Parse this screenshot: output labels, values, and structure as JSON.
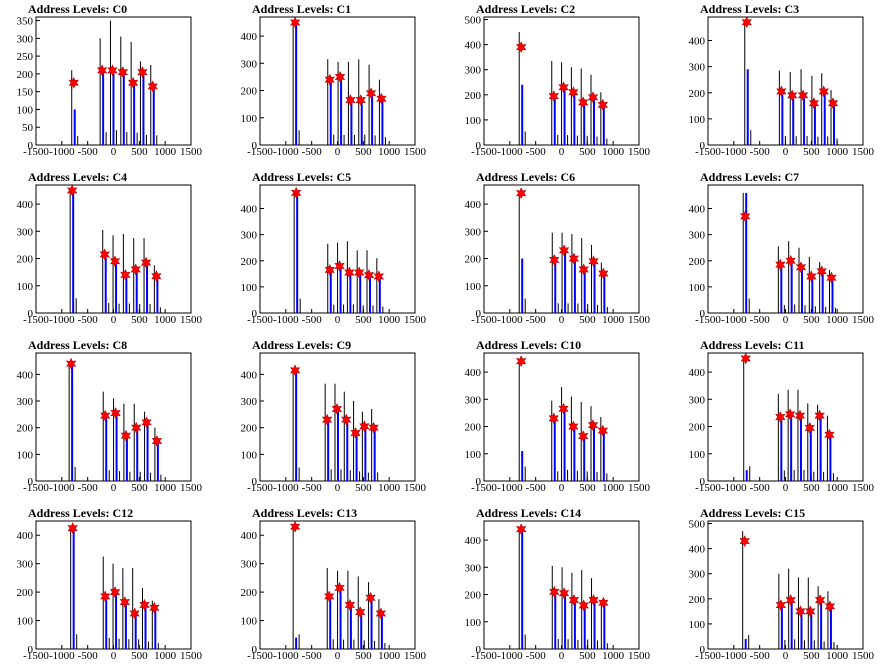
{
  "colors": {
    "frame": "#000000",
    "blue": "#0000ff",
    "black": "#000000",
    "marker": "#ff0000"
  },
  "chart_data": [
    {
      "title": "Address Levels: C0",
      "type": "bar",
      "xlim": [
        -1500,
        1500
      ],
      "ylim": [
        0,
        360
      ],
      "xticks": [
        "-1500",
        "-1000",
        "-500",
        "0",
        "500",
        "1000",
        "1500"
      ],
      "yticks": [
        "0",
        "50",
        "100",
        "150",
        "200",
        "250",
        "300",
        "350"
      ],
      "peaks": [
        {
          "x": -770,
          "black": 210,
          "blue": 100,
          "marker": 175
        },
        {
          "x": -220,
          "black": 300,
          "blue": 205,
          "marker": 210
        },
        {
          "x": -20,
          "black": 350,
          "blue": 205,
          "marker": 210
        },
        {
          "x": 180,
          "black": 305,
          "blue": 200,
          "marker": 205
        },
        {
          "x": 380,
          "black": 290,
          "blue": 170,
          "marker": 175
        },
        {
          "x": 560,
          "black": 235,
          "blue": 200,
          "marker": 205
        },
        {
          "x": 760,
          "black": 225,
          "blue": 160,
          "marker": 165
        }
      ]
    },
    {
      "title": "Address Levels: C1",
      "type": "bar",
      "xlim": [
        -1500,
        1500
      ],
      "ylim": [
        0,
        470
      ],
      "xticks": [
        "-1500",
        "-1000",
        "-500",
        "0",
        "500",
        "1000",
        "1500"
      ],
      "yticks": [
        "0",
        "100",
        "200",
        "300",
        "400"
      ],
      "peaks": [
        {
          "x": -820,
          "black": 450,
          "blue": 450,
          "marker": 450
        },
        {
          "x": -150,
          "black": 315,
          "blue": 235,
          "marker": 240
        },
        {
          "x": 50,
          "black": 305,
          "blue": 245,
          "marker": 250
        },
        {
          "x": 250,
          "black": 305,
          "blue": 160,
          "marker": 165
        },
        {
          "x": 450,
          "black": 315,
          "blue": 160,
          "marker": 165
        },
        {
          "x": 650,
          "black": 295,
          "blue": 185,
          "marker": 190
        },
        {
          "x": 850,
          "black": 240,
          "blue": 165,
          "marker": 170
        }
      ]
    },
    {
      "title": "Address Levels: C2",
      "type": "bar",
      "xlim": [
        -1500,
        1500
      ],
      "ylim": [
        0,
        510
      ],
      "xticks": [
        "-1500",
        "-1000",
        "-500",
        "0",
        "500",
        "1000",
        "1500"
      ],
      "yticks": [
        "0",
        "100",
        "200",
        "300",
        "400",
        "500"
      ],
      "peaks": [
        {
          "x": -780,
          "black": 450,
          "blue": 240,
          "marker": 390
        },
        {
          "x": -150,
          "black": 335,
          "blue": 195,
          "marker": 195
        },
        {
          "x": 40,
          "black": 330,
          "blue": 225,
          "marker": 230
        },
        {
          "x": 230,
          "black": 310,
          "blue": 205,
          "marker": 210
        },
        {
          "x": 420,
          "black": 305,
          "blue": 170,
          "marker": 170
        },
        {
          "x": 610,
          "black": 280,
          "blue": 190,
          "marker": 190
        },
        {
          "x": 800,
          "black": 210,
          "blue": 155,
          "marker": 160
        }
      ]
    },
    {
      "title": "Address Levels: C3",
      "type": "bar",
      "xlim": [
        -1500,
        1500
      ],
      "ylim": [
        0,
        490
      ],
      "xticks": [
        "-1500",
        "-1000",
        "-500",
        "0",
        "500",
        "1000",
        "1500"
      ],
      "yticks": [
        "0",
        "100",
        "200",
        "300",
        "400"
      ],
      "peaks": [
        {
          "x": -750,
          "black": 470,
          "blue": 290,
          "marker": 470
        },
        {
          "x": -80,
          "black": 285,
          "blue": 200,
          "marker": 205
        },
        {
          "x": 130,
          "black": 280,
          "blue": 185,
          "marker": 190
        },
        {
          "x": 340,
          "black": 290,
          "blue": 190,
          "marker": 190
        },
        {
          "x": 550,
          "black": 265,
          "blue": 155,
          "marker": 160
        },
        {
          "x": 740,
          "black": 275,
          "blue": 200,
          "marker": 205
        },
        {
          "x": 920,
          "black": 210,
          "blue": 155,
          "marker": 160
        }
      ]
    },
    {
      "title": "Address Levels: C4",
      "type": "bar",
      "xlim": [
        -1500,
        1500
      ],
      "ylim": [
        0,
        470
      ],
      "xticks": [
        "-1500",
        "-1000",
        "-500",
        "0",
        "500",
        "1000",
        "1500"
      ],
      "yticks": [
        "0",
        "100",
        "200",
        "300",
        "400"
      ],
      "peaks": [
        {
          "x": -800,
          "black": 450,
          "blue": 450,
          "marker": 450
        },
        {
          "x": -170,
          "black": 305,
          "blue": 205,
          "marker": 215
        },
        {
          "x": 30,
          "black": 285,
          "blue": 185,
          "marker": 190
        },
        {
          "x": 230,
          "black": 290,
          "blue": 135,
          "marker": 140
        },
        {
          "x": 430,
          "black": 275,
          "blue": 155,
          "marker": 160
        },
        {
          "x": 630,
          "black": 275,
          "blue": 180,
          "marker": 185
        },
        {
          "x": 830,
          "black": 175,
          "blue": 130,
          "marker": 135
        }
      ]
    },
    {
      "title": "Address Levels: C5",
      "type": "bar",
      "xlim": [
        -1500,
        1500
      ],
      "ylim": [
        0,
        490
      ],
      "xticks": [
        "-1500",
        "-1000",
        "-500",
        "0",
        "500",
        "1000",
        "1500"
      ],
      "yticks": [
        "0",
        "100",
        "200",
        "300",
        "400"
      ],
      "peaks": [
        {
          "x": -800,
          "black": 460,
          "blue": 460,
          "marker": 460
        },
        {
          "x": -150,
          "black": 265,
          "blue": 165,
          "marker": 165
        },
        {
          "x": 40,
          "black": 270,
          "blue": 175,
          "marker": 180
        },
        {
          "x": 230,
          "black": 275,
          "blue": 150,
          "marker": 155
        },
        {
          "x": 420,
          "black": 240,
          "blue": 150,
          "marker": 155
        },
        {
          "x": 610,
          "black": 240,
          "blue": 145,
          "marker": 145
        },
        {
          "x": 800,
          "black": 210,
          "blue": 140,
          "marker": 140
        }
      ]
    },
    {
      "title": "Address Levels: C6",
      "type": "bar",
      "xlim": [
        -1500,
        1500
      ],
      "ylim": [
        0,
        470
      ],
      "xticks": [
        "-1500",
        "-1000",
        "-500",
        "0",
        "500",
        "1000",
        "1500"
      ],
      "yticks": [
        "0",
        "100",
        "200",
        "300",
        "400"
      ],
      "peaks": [
        {
          "x": -780,
          "black": 440,
          "blue": 200,
          "marker": 440
        },
        {
          "x": -140,
          "black": 295,
          "blue": 195,
          "marker": 195
        },
        {
          "x": 50,
          "black": 295,
          "blue": 225,
          "marker": 230
        },
        {
          "x": 240,
          "black": 290,
          "blue": 195,
          "marker": 200
        },
        {
          "x": 430,
          "black": 275,
          "blue": 160,
          "marker": 160
        },
        {
          "x": 620,
          "black": 250,
          "blue": 185,
          "marker": 190
        },
        {
          "x": 810,
          "black": 185,
          "blue": 140,
          "marker": 145
        }
      ]
    },
    {
      "title": "Address Levels: C7",
      "type": "bar",
      "xlim": [
        -1500,
        1500
      ],
      "ylim": [
        0,
        490
      ],
      "xticks": [
        "-1500",
        "-1000",
        "-500",
        "0",
        "500",
        "1000",
        "1500"
      ],
      "yticks": [
        "0",
        "100",
        "200",
        "300",
        "400"
      ],
      "peaks": [
        {
          "x": -780,
          "black": 460,
          "blue": 460,
          "marker": 370
        },
        {
          "x": -100,
          "black": 255,
          "blue": 180,
          "marker": 185
        },
        {
          "x": 100,
          "black": 275,
          "blue": 195,
          "marker": 200
        },
        {
          "x": 300,
          "black": 250,
          "blue": 170,
          "marker": 175
        },
        {
          "x": 500,
          "black": 215,
          "blue": 135,
          "marker": 140
        },
        {
          "x": 700,
          "black": 195,
          "blue": 155,
          "marker": 160
        },
        {
          "x": 890,
          "black": 165,
          "blue": 130,
          "marker": 135
        }
      ]
    },
    {
      "title": "Address Levels: C8",
      "type": "bar",
      "xlim": [
        -1500,
        1500
      ],
      "ylim": [
        0,
        480
      ],
      "xticks": [
        "-1500",
        "-1000",
        "-500",
        "0",
        "500",
        "1000",
        "1500"
      ],
      "yticks": [
        "0",
        "100",
        "200",
        "300",
        "400"
      ],
      "peaks": [
        {
          "x": -820,
          "black": 440,
          "blue": 440,
          "marker": 440
        },
        {
          "x": -160,
          "black": 335,
          "blue": 245,
          "marker": 245
        },
        {
          "x": 40,
          "black": 310,
          "blue": 250,
          "marker": 255
        },
        {
          "x": 240,
          "black": 290,
          "blue": 170,
          "marker": 170
        },
        {
          "x": 440,
          "black": 290,
          "blue": 195,
          "marker": 200
        },
        {
          "x": 640,
          "black": 260,
          "blue": 215,
          "marker": 220
        },
        {
          "x": 840,
          "black": 200,
          "blue": 150,
          "marker": 150
        }
      ]
    },
    {
      "title": "Address Levels: C9",
      "type": "bar",
      "xlim": [
        -1500,
        1500
      ],
      "ylim": [
        0,
        480
      ],
      "xticks": [
        "-1500",
        "-1000",
        "-500",
        "0",
        "500",
        "1000",
        "1500"
      ],
      "yticks": [
        "0",
        "100",
        "200",
        "300",
        "400"
      ],
      "peaks": [
        {
          "x": -820,
          "black": 420,
          "blue": 420,
          "marker": 415
        },
        {
          "x": -200,
          "black": 365,
          "blue": 225,
          "marker": 230
        },
        {
          "x": -10,
          "black": 365,
          "blue": 270,
          "marker": 270
        },
        {
          "x": 170,
          "black": 335,
          "blue": 230,
          "marker": 230
        },
        {
          "x": 350,
          "black": 300,
          "blue": 180,
          "marker": 180
        },
        {
          "x": 520,
          "black": 260,
          "blue": 205,
          "marker": 205
        },
        {
          "x": 700,
          "black": 270,
          "blue": 200,
          "marker": 200
        }
      ]
    },
    {
      "title": "Address Levels: C10",
      "type": "bar",
      "xlim": [
        -1500,
        1500
      ],
      "ylim": [
        0,
        470
      ],
      "xticks": [
        "-1500",
        "-1000",
        "-500",
        "0",
        "500",
        "1000",
        "1500"
      ],
      "yticks": [
        "0",
        "100",
        "200",
        "300",
        "400"
      ],
      "peaks": [
        {
          "x": -780,
          "black": 440,
          "blue": 110,
          "marker": 440
        },
        {
          "x": -150,
          "black": 295,
          "blue": 225,
          "marker": 230
        },
        {
          "x": 40,
          "black": 345,
          "blue": 260,
          "marker": 265
        },
        {
          "x": 230,
          "black": 310,
          "blue": 200,
          "marker": 200
        },
        {
          "x": 420,
          "black": 290,
          "blue": 165,
          "marker": 165
        },
        {
          "x": 610,
          "black": 275,
          "blue": 200,
          "marker": 205
        },
        {
          "x": 800,
          "black": 235,
          "blue": 180,
          "marker": 185
        }
      ]
    },
    {
      "title": "Address Levels: C11",
      "type": "bar",
      "xlim": [
        -1500,
        1500
      ],
      "ylim": [
        0,
        470
      ],
      "xticks": [
        "-1500",
        "-1000",
        "-500",
        "0",
        "500",
        "1000",
        "1500"
      ],
      "yticks": [
        "0",
        "100",
        "200",
        "300",
        "400"
      ],
      "peaks": [
        {
          "x": -770,
          "black": 450,
          "blue": 40,
          "marker": 450
        },
        {
          "x": -100,
          "black": 320,
          "blue": 230,
          "marker": 235
        },
        {
          "x": 90,
          "black": 335,
          "blue": 240,
          "marker": 245
        },
        {
          "x": 280,
          "black": 335,
          "blue": 240,
          "marker": 240
        },
        {
          "x": 470,
          "black": 285,
          "blue": 195,
          "marker": 195
        },
        {
          "x": 660,
          "black": 280,
          "blue": 235,
          "marker": 240
        },
        {
          "x": 850,
          "black": 240,
          "blue": 165,
          "marker": 170
        }
      ]
    },
    {
      "title": "Address Levels: C12",
      "type": "bar",
      "xlim": [
        -1500,
        1500
      ],
      "ylim": [
        0,
        450
      ],
      "xticks": [
        "-1500",
        "-1000",
        "-500",
        "0",
        "500",
        "1000",
        "1500"
      ],
      "yticks": [
        "0",
        "100",
        "200",
        "300",
        "400"
      ],
      "peaks": [
        {
          "x": -790,
          "black": 430,
          "blue": 430,
          "marker": 425
        },
        {
          "x": -160,
          "black": 325,
          "blue": 185,
          "marker": 185
        },
        {
          "x": 30,
          "black": 300,
          "blue": 200,
          "marker": 200
        },
        {
          "x": 220,
          "black": 285,
          "blue": 160,
          "marker": 165
        },
        {
          "x": 410,
          "black": 285,
          "blue": 125,
          "marker": 125
        },
        {
          "x": 600,
          "black": 215,
          "blue": 155,
          "marker": 155
        },
        {
          "x": 790,
          "black": 170,
          "blue": 140,
          "marker": 145
        }
      ]
    },
    {
      "title": "Address Levels: C13",
      "type": "bar",
      "xlim": [
        -1500,
        1500
      ],
      "ylim": [
        0,
        450
      ],
      "xticks": [
        "-1500",
        "-1000",
        "-500",
        "0",
        "500",
        "1000",
        "1500"
      ],
      "yticks": [
        "0",
        "100",
        "200",
        "300",
        "400"
      ],
      "peaks": [
        {
          "x": -820,
          "black": 430,
          "blue": 40,
          "marker": 430
        },
        {
          "x": -160,
          "black": 285,
          "blue": 180,
          "marker": 185
        },
        {
          "x": 40,
          "black": 275,
          "blue": 215,
          "marker": 215
        },
        {
          "x": 240,
          "black": 275,
          "blue": 150,
          "marker": 155
        },
        {
          "x": 440,
          "black": 255,
          "blue": 130,
          "marker": 130
        },
        {
          "x": 640,
          "black": 235,
          "blue": 175,
          "marker": 180
        },
        {
          "x": 840,
          "black": 175,
          "blue": 120,
          "marker": 125
        }
      ]
    },
    {
      "title": "Address Levels: C14",
      "type": "bar",
      "xlim": [
        -1500,
        1500
      ],
      "ylim": [
        0,
        470
      ],
      "xticks": [
        "-1500",
        "-1000",
        "-500",
        "0",
        "500",
        "1000",
        "1500"
      ],
      "yticks": [
        "0",
        "100",
        "200",
        "300",
        "400"
      ],
      "peaks": [
        {
          "x": -780,
          "black": 440,
          "blue": 440,
          "marker": 440
        },
        {
          "x": -140,
          "black": 305,
          "blue": 210,
          "marker": 210
        },
        {
          "x": 50,
          "black": 300,
          "blue": 205,
          "marker": 205
        },
        {
          "x": 240,
          "black": 280,
          "blue": 180,
          "marker": 180
        },
        {
          "x": 430,
          "black": 290,
          "blue": 160,
          "marker": 160
        },
        {
          "x": 620,
          "black": 260,
          "blue": 180,
          "marker": 180
        },
        {
          "x": 810,
          "black": 175,
          "blue": 170,
          "marker": 170
        }
      ]
    },
    {
      "title": "Address Levels: C15",
      "type": "bar",
      "xlim": [
        -1500,
        1500
      ],
      "ylim": [
        0,
        510
      ],
      "xticks": [
        "-1500",
        "-1000",
        "-500",
        "0",
        "500",
        "1000",
        "1500"
      ],
      "yticks": [
        "0",
        "100",
        "200",
        "300",
        "400",
        "500"
      ],
      "peaks": [
        {
          "x": -790,
          "black": 470,
          "blue": 40,
          "marker": 430
        },
        {
          "x": -90,
          "black": 300,
          "blue": 175,
          "marker": 175
        },
        {
          "x": 100,
          "black": 320,
          "blue": 195,
          "marker": 195
        },
        {
          "x": 290,
          "black": 285,
          "blue": 150,
          "marker": 150
        },
        {
          "x": 480,
          "black": 285,
          "blue": 145,
          "marker": 150
        },
        {
          "x": 670,
          "black": 250,
          "blue": 200,
          "marker": 195
        },
        {
          "x": 860,
          "black": 230,
          "blue": 170,
          "marker": 170
        }
      ]
    }
  ]
}
